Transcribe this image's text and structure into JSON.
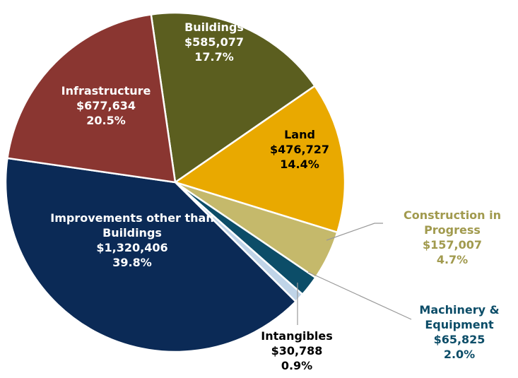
{
  "chart_data": {
    "type": "pie",
    "categories": [
      "Buildings",
      "Land",
      "Construction in Progress",
      "Machinery & Equipment",
      "Intangibles",
      "Improvements other than Buildings",
      "Infrastructure"
    ],
    "values": [
      585077,
      476727,
      157007,
      65825,
      30788,
      1320406,
      677634
    ],
    "value_labels": [
      "$585,077",
      "$476,727",
      "$157,007",
      "$65,825",
      "$30,788",
      "$1,320,406",
      "$677,634"
    ],
    "percentages": [
      17.7,
      14.4,
      4.7,
      2.0,
      0.9,
      39.8,
      20.5
    ],
    "percentage_labels": [
      "17.7%",
      "14.4%",
      "4.7%",
      "2.0%",
      "0.9%",
      "39.8%",
      "20.5%"
    ],
    "colors": [
      "#5b5e1f",
      "#e9a900",
      "#c5b96b",
      "#0c4d68",
      "#bfd4e8",
      "#0b2a56",
      "#8a3631"
    ]
  }
}
